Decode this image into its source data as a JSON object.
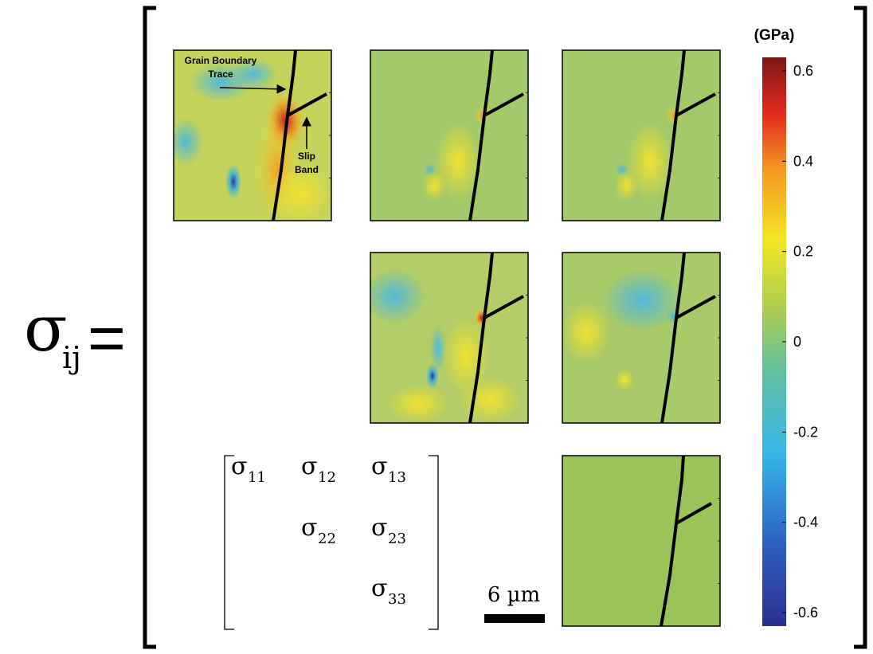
{
  "equation": {
    "symbol": "σ",
    "subscript": "ij",
    "equals": "="
  },
  "annotations": {
    "grain_boundary": [
      "Grain Boundary",
      "Trace"
    ],
    "slip_band": [
      "Slip",
      "Band"
    ]
  },
  "key": {
    "entries": [
      {
        "symbol": "σ",
        "subscript": "11"
      },
      {
        "symbol": "σ",
        "subscript": "12"
      },
      {
        "symbol": "σ",
        "subscript": "13"
      },
      {
        "symbol": "σ",
        "subscript": "22"
      },
      {
        "symbol": "σ",
        "subscript": "23"
      },
      {
        "symbol": "σ",
        "subscript": "33"
      }
    ]
  },
  "scale_bar": {
    "label": "6 µm"
  },
  "colorbar": {
    "unit": "(GPa)",
    "range": [
      -0.63,
      0.63
    ],
    "ticks": [
      0.6,
      0.4,
      0.2,
      0,
      -0.2,
      -0.4,
      -0.6
    ]
  }
}
